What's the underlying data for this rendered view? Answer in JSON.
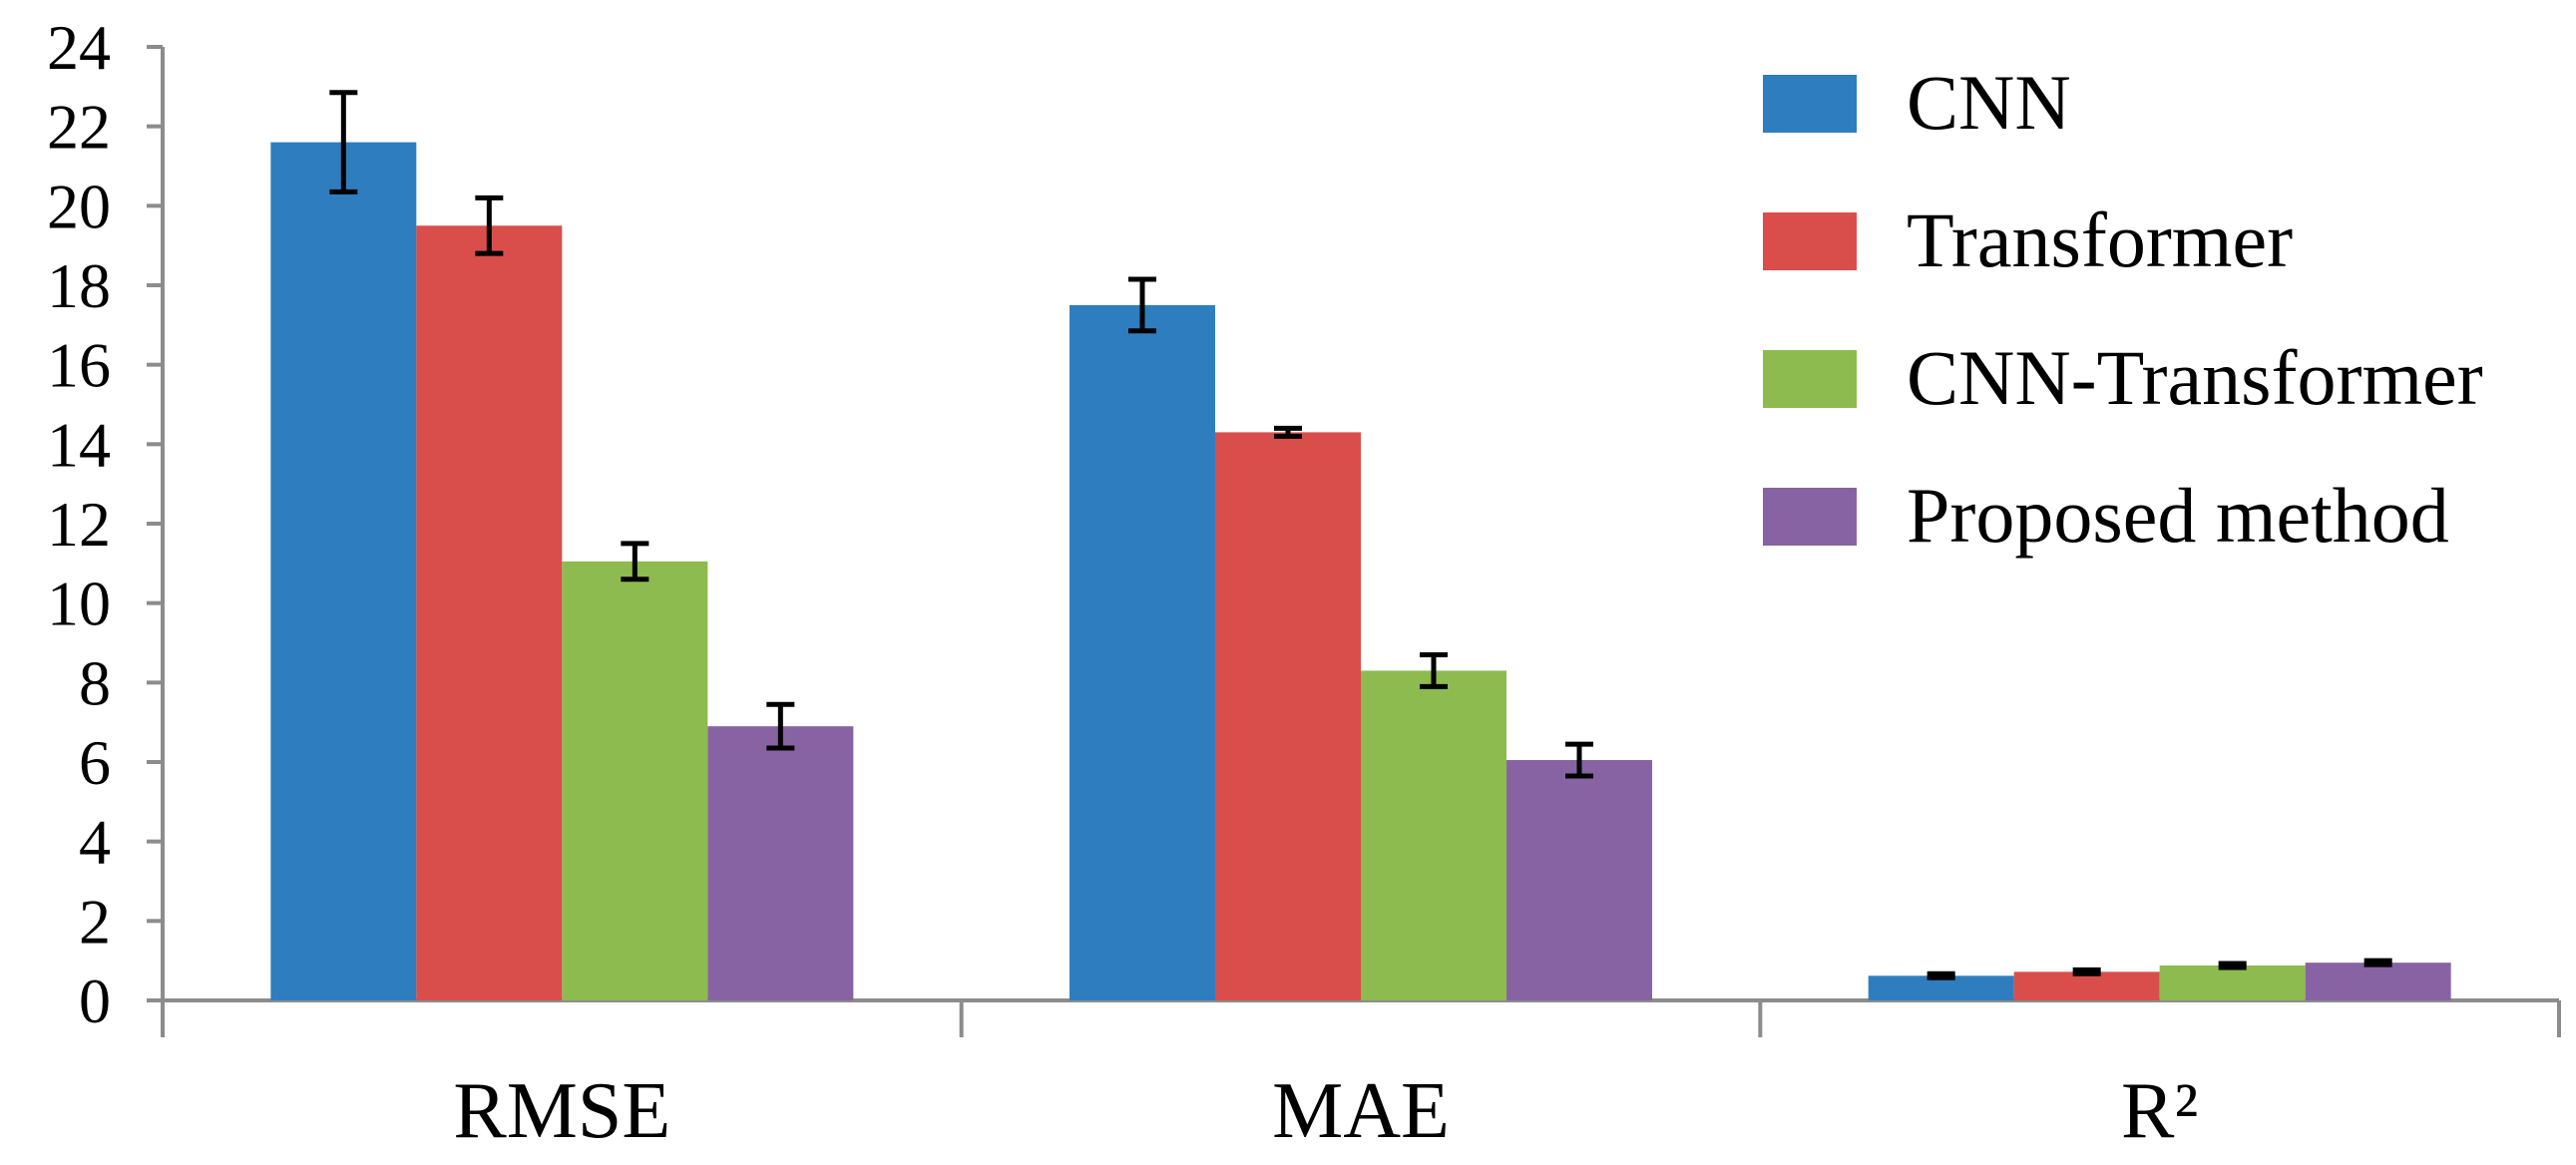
{
  "chart_data": {
    "type": "bar",
    "categories": [
      "RMSE",
      "MAE",
      "R²"
    ],
    "series": [
      {
        "name": "CNN",
        "color": "#2E7EBF",
        "values": [
          21.6,
          17.5,
          0.62
        ],
        "errors": [
          1.25,
          0.65,
          0.05
        ]
      },
      {
        "name": "Transformer",
        "color": "#D94E4B",
        "values": [
          19.5,
          14.3,
          0.72
        ],
        "errors": [
          0.7,
          0.1,
          0.05
        ]
      },
      {
        "name": "CNN-Transformer",
        "color": "#8DBB4F",
        "values": [
          11.05,
          8.3,
          0.88
        ],
        "errors": [
          0.45,
          0.4,
          0.05
        ]
      },
      {
        "name": "Proposed method",
        "color": "#8763A3",
        "values": [
          6.9,
          6.05,
          0.95
        ],
        "errors": [
          0.55,
          0.4,
          0.05
        ]
      }
    ],
    "ylim": [
      0,
      24
    ],
    "yticks": [
      0,
      2,
      4,
      6,
      8,
      10,
      12,
      14,
      16,
      18,
      20,
      22,
      24
    ],
    "xlabel": "",
    "ylabel": "",
    "title": "",
    "legend_position": "top-right",
    "grid": false
  }
}
